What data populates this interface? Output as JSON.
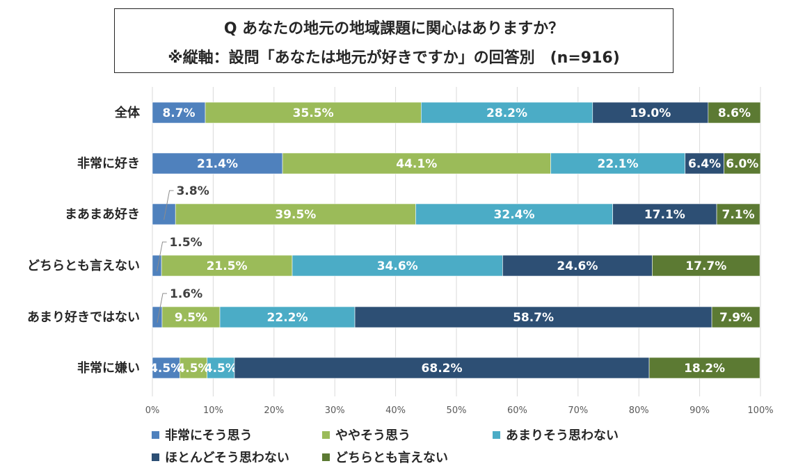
{
  "title": {
    "line1": "Q あなたの地元の地域課題に関心はありますか？",
    "line2": "※縦軸：設問「あなたは地元が好きですか」の回答別　(n=916)"
  },
  "chart_data": {
    "type": "bar",
    "orientation": "horizontal-stacked-100",
    "categories": [
      "全体",
      "非常に好き",
      "まあまあ好き",
      "どちらとも言えない",
      "あまり好きではない",
      "非常に嫌い"
    ],
    "series": [
      {
        "name": "非常にそう思う",
        "color": "#4f81bd",
        "label_color": "#ffffff",
        "values": [
          8.7,
          21.4,
          3.8,
          1.5,
          1.6,
          4.5
        ]
      },
      {
        "name": "ややそう思う",
        "color": "#9bbb59",
        "label_color": "#ffffff",
        "values": [
          35.5,
          44.1,
          39.5,
          21.5,
          9.5,
          4.5
        ]
      },
      {
        "name": "あまりそう思わない",
        "color": "#4bacc6",
        "label_color": "#ffffff",
        "values": [
          28.2,
          22.1,
          32.4,
          34.6,
          22.2,
          4.5
        ]
      },
      {
        "name": "ほとんどそう思わない",
        "color": "#2d4f74",
        "label_color": "#ffffff",
        "values": [
          19.0,
          6.4,
          17.1,
          24.6,
          58.7,
          68.2
        ]
      },
      {
        "name": "どちらとも言えない",
        "color": "#5c7a33",
        "label_color": "#ffffff",
        "values": [
          8.6,
          6.0,
          7.1,
          17.7,
          7.9,
          18.2
        ]
      }
    ],
    "value_format": "%",
    "x_ticks": [
      "0%",
      "10%",
      "20%",
      "30%",
      "40%",
      "50%",
      "60%",
      "70%",
      "80%",
      "90%",
      "100%"
    ],
    "xlim": [
      0,
      100
    ],
    "grid": true,
    "legend_position": "bottom",
    "callout_labels": [
      {
        "category_index": 2,
        "series_index": 0,
        "text": "3.8%"
      },
      {
        "category_index": 3,
        "series_index": 0,
        "text": "1.5%"
      },
      {
        "category_index": 4,
        "series_index": 0,
        "text": "1.6%"
      }
    ]
  }
}
